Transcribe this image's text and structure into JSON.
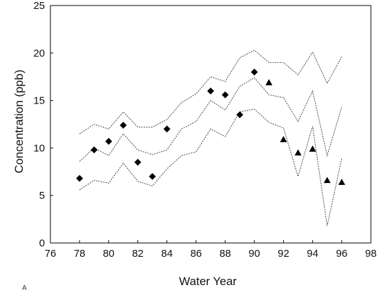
{
  "chart_data": {
    "type": "scatter",
    "title": "",
    "xlabel": "Water Year",
    "ylabel": "Concentration (ppb)",
    "xlim": [
      76,
      98
    ],
    "ylim": [
      0,
      25
    ],
    "xticks": [
      "76",
      "78",
      "80",
      "82",
      "84",
      "86",
      "88",
      "90",
      "92",
      "94",
      "96",
      "98"
    ],
    "yticks": [
      "0",
      "5",
      "10",
      "15",
      "20",
      "25"
    ],
    "grid": false,
    "series": [
      {
        "marker": "diamond",
        "color": "#000000",
        "x": [
          78,
          79,
          80,
          81,
          82,
          83,
          84,
          87,
          88,
          89,
          90
        ],
        "y": [
          6.8,
          9.8,
          10.7,
          12.4,
          8.5,
          7.0,
          12.0,
          16.0,
          15.6,
          13.5,
          18.0
        ]
      },
      {
        "marker": "triangle",
        "color": "#000000",
        "x": [
          91,
          92,
          93,
          94,
          95,
          96
        ],
        "y": [
          16.9,
          10.9,
          9.5,
          9.9,
          6.6,
          6.4
        ]
      }
    ],
    "bands": [
      {
        "style": "dotted",
        "x": [
          78,
          79,
          80,
          81,
          82,
          83,
          84,
          85,
          86,
          87,
          88,
          89,
          90,
          91,
          92,
          93,
          94,
          95,
          96
        ],
        "y": [
          11.5,
          12.5,
          12.0,
          13.8,
          12.2,
          12.2,
          13.0,
          14.8,
          15.7,
          17.5,
          17.0,
          19.5,
          20.3,
          19.0,
          19.0,
          17.7,
          20.1,
          16.8,
          19.6
        ]
      },
      {
        "style": "dotted",
        "x": [
          78,
          79,
          80,
          81,
          82,
          83,
          84,
          85,
          86,
          87,
          88,
          89,
          90,
          91,
          92,
          93,
          94,
          95,
          96
        ],
        "y": [
          8.6,
          10.0,
          9.2,
          11.5,
          9.8,
          9.3,
          9.8,
          12.0,
          12.8,
          15.0,
          14.0,
          16.5,
          17.4,
          15.6,
          15.3,
          12.8,
          16.0,
          9.2,
          14.3
        ]
      },
      {
        "style": "dotted",
        "x": [
          78,
          79,
          80,
          81,
          82,
          83,
          84,
          85,
          86,
          87,
          88,
          89,
          90,
          91,
          92,
          93,
          94,
          95,
          96
        ],
        "y": [
          5.6,
          6.6,
          6.3,
          8.4,
          6.5,
          6.0,
          7.8,
          9.2,
          9.6,
          12.0,
          11.2,
          13.8,
          14.1,
          12.7,
          12.1,
          7.0,
          12.3,
          1.8,
          8.9
        ]
      }
    ]
  },
  "footnote": "A"
}
